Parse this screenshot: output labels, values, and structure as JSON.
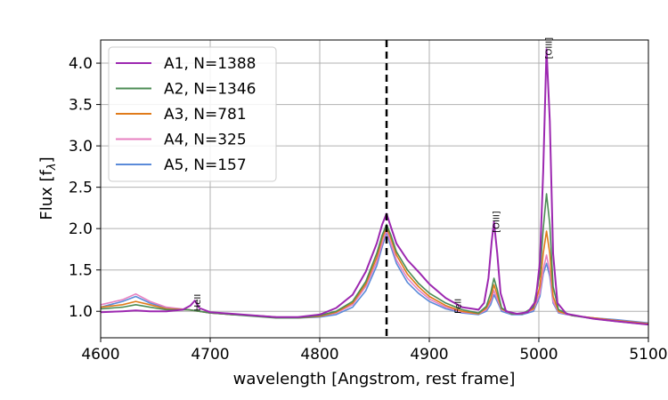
{
  "chart_data": {
    "type": "line",
    "xlabel": "wavelength [Angstrom, rest frame]",
    "ylabel": "Flux [f",
    "ylabel_subscript": "λ",
    "ylabel_close": "]",
    "xlim": [
      4600,
      5100
    ],
    "ylim": [
      0.68,
      4.28
    ],
    "xticks": [
      4600,
      4700,
      4800,
      4900,
      5000,
      5100
    ],
    "yticks": [
      1.0,
      1.5,
      2.0,
      2.5,
      3.0,
      3.5,
      4.0
    ],
    "grid": true,
    "legend_position": "top-left",
    "vline_x": 4861,
    "annotations": [
      {
        "text": "HeII",
        "x": 4686,
        "y": 1.0
      },
      {
        "text": "FeII",
        "x": 4924,
        "y": 0.97
      },
      {
        "text": "[OIII]",
        "x": 4959,
        "y": 1.95
      },
      {
        "text": "[OIII]",
        "x": 5007,
        "y": 4.05
      }
    ],
    "series": [
      {
        "name": "A5, N=157",
        "color": "#5b8bd9",
        "points": [
          [
            4600,
            1.05
          ],
          [
            4620,
            1.12
          ],
          [
            4632,
            1.18
          ],
          [
            4645,
            1.1
          ],
          [
            4660,
            1.04
          ],
          [
            4680,
            1.02
          ],
          [
            4690,
            1.0
          ],
          [
            4700,
            0.98
          ],
          [
            4720,
            0.96
          ],
          [
            4740,
            0.95
          ],
          [
            4760,
            0.93
          ],
          [
            4780,
            0.92
          ],
          [
            4800,
            0.93
          ],
          [
            4815,
            0.96
          ],
          [
            4830,
            1.05
          ],
          [
            4842,
            1.25
          ],
          [
            4852,
            1.55
          ],
          [
            4857,
            1.78
          ],
          [
            4861,
            1.95
          ],
          [
            4865,
            1.78
          ],
          [
            4870,
            1.58
          ],
          [
            4880,
            1.35
          ],
          [
            4890,
            1.22
          ],
          [
            4900,
            1.12
          ],
          [
            4915,
            1.03
          ],
          [
            4930,
            0.98
          ],
          [
            4945,
            0.96
          ],
          [
            4952,
            1.0
          ],
          [
            4956,
            1.08
          ],
          [
            4959,
            1.2
          ],
          [
            4962,
            1.12
          ],
          [
            4966,
            1.0
          ],
          [
            4975,
            0.96
          ],
          [
            4985,
            0.96
          ],
          [
            4995,
            1.0
          ],
          [
            5001,
            1.18
          ],
          [
            5004,
            1.45
          ],
          [
            5007,
            1.58
          ],
          [
            5010,
            1.42
          ],
          [
            5013,
            1.1
          ],
          [
            5018,
            0.98
          ],
          [
            5030,
            0.95
          ],
          [
            5050,
            0.92
          ],
          [
            5070,
            0.9
          ],
          [
            5085,
            0.88
          ],
          [
            5100,
            0.86
          ]
        ]
      },
      {
        "name": "A4, N=325",
        "color": "#e77fc0",
        "points": [
          [
            4600,
            1.08
          ],
          [
            4620,
            1.14
          ],
          [
            4632,
            1.21
          ],
          [
            4645,
            1.12
          ],
          [
            4660,
            1.05
          ],
          [
            4680,
            1.02
          ],
          [
            4690,
            1.0
          ],
          [
            4700,
            0.98
          ],
          [
            4720,
            0.96
          ],
          [
            4740,
            0.95
          ],
          [
            4760,
            0.93
          ],
          [
            4780,
            0.93
          ],
          [
            4800,
            0.94
          ],
          [
            4815,
            0.98
          ],
          [
            4830,
            1.08
          ],
          [
            4842,
            1.3
          ],
          [
            4852,
            1.6
          ],
          [
            4857,
            1.82
          ],
          [
            4861,
            1.98
          ],
          [
            4865,
            1.82
          ],
          [
            4870,
            1.62
          ],
          [
            4880,
            1.4
          ],
          [
            4890,
            1.26
          ],
          [
            4900,
            1.15
          ],
          [
            4915,
            1.05
          ],
          [
            4930,
            0.99
          ],
          [
            4945,
            0.97
          ],
          [
            4952,
            1.02
          ],
          [
            4956,
            1.12
          ],
          [
            4959,
            1.25
          ],
          [
            4962,
            1.15
          ],
          [
            4966,
            1.02
          ],
          [
            4975,
            0.97
          ],
          [
            4985,
            0.97
          ],
          [
            4995,
            1.02
          ],
          [
            5001,
            1.22
          ],
          [
            5004,
            1.5
          ],
          [
            5007,
            1.68
          ],
          [
            5010,
            1.48
          ],
          [
            5013,
            1.12
          ],
          [
            5018,
            0.99
          ],
          [
            5030,
            0.95
          ],
          [
            5050,
            0.92
          ],
          [
            5070,
            0.89
          ],
          [
            5085,
            0.87
          ],
          [
            5100,
            0.85
          ]
        ]
      },
      {
        "name": "A3, N=781",
        "color": "#e07b1a",
        "points": [
          [
            4600,
            1.05
          ],
          [
            4620,
            1.08
          ],
          [
            4632,
            1.12
          ],
          [
            4645,
            1.08
          ],
          [
            4660,
            1.03
          ],
          [
            4680,
            1.02
          ],
          [
            4690,
            1.0
          ],
          [
            4700,
            0.98
          ],
          [
            4720,
            0.96
          ],
          [
            4740,
            0.95
          ],
          [
            4760,
            0.93
          ],
          [
            4780,
            0.92
          ],
          [
            4800,
            0.94
          ],
          [
            4815,
            0.99
          ],
          [
            4830,
            1.1
          ],
          [
            4842,
            1.33
          ],
          [
            4852,
            1.65
          ],
          [
            4857,
            1.88
          ],
          [
            4861,
            2.02
          ],
          [
            4865,
            1.88
          ],
          [
            4870,
            1.68
          ],
          [
            4880,
            1.45
          ],
          [
            4890,
            1.3
          ],
          [
            4900,
            1.18
          ],
          [
            4915,
            1.07
          ],
          [
            4930,
            1.0
          ],
          [
            4945,
            0.97
          ],
          [
            4952,
            1.04
          ],
          [
            4956,
            1.15
          ],
          [
            4959,
            1.32
          ],
          [
            4962,
            1.2
          ],
          [
            4966,
            1.03
          ],
          [
            4975,
            0.97
          ],
          [
            4985,
            0.97
          ],
          [
            4995,
            1.03
          ],
          [
            5001,
            1.3
          ],
          [
            5004,
            1.7
          ],
          [
            5007,
            1.97
          ],
          [
            5010,
            1.7
          ],
          [
            5013,
            1.18
          ],
          [
            5018,
            1.0
          ],
          [
            5030,
            0.95
          ],
          [
            5050,
            0.92
          ],
          [
            5070,
            0.89
          ],
          [
            5085,
            0.87
          ],
          [
            5100,
            0.85
          ]
        ]
      },
      {
        "name": "A2, N=1346",
        "color": "#4c8c55",
        "points": [
          [
            4600,
            1.03
          ],
          [
            4620,
            1.05
          ],
          [
            4632,
            1.08
          ],
          [
            4645,
            1.05
          ],
          [
            4660,
            1.02
          ],
          [
            4680,
            1.02
          ],
          [
            4690,
            1.0
          ],
          [
            4700,
            0.98
          ],
          [
            4720,
            0.96
          ],
          [
            4740,
            0.94
          ],
          [
            4760,
            0.92
          ],
          [
            4780,
            0.92
          ],
          [
            4800,
            0.95
          ],
          [
            4815,
            1.0
          ],
          [
            4830,
            1.12
          ],
          [
            4842,
            1.36
          ],
          [
            4852,
            1.7
          ],
          [
            4857,
            1.92
          ],
          [
            4861,
            2.05
          ],
          [
            4865,
            1.92
          ],
          [
            4870,
            1.72
          ],
          [
            4880,
            1.5
          ],
          [
            4890,
            1.34
          ],
          [
            4900,
            1.22
          ],
          [
            4915,
            1.1
          ],
          [
            4930,
            1.02
          ],
          [
            4945,
            0.98
          ],
          [
            4952,
            1.06
          ],
          [
            4956,
            1.22
          ],
          [
            4959,
            1.4
          ],
          [
            4962,
            1.26
          ],
          [
            4966,
            1.04
          ],
          [
            4975,
            0.97
          ],
          [
            4985,
            0.97
          ],
          [
            4995,
            1.05
          ],
          [
            5001,
            1.45
          ],
          [
            5004,
            2.0
          ],
          [
            5007,
            2.42
          ],
          [
            5010,
            2.05
          ],
          [
            5013,
            1.3
          ],
          [
            5018,
            1.02
          ],
          [
            5030,
            0.95
          ],
          [
            5050,
            0.91
          ],
          [
            5070,
            0.88
          ],
          [
            5085,
            0.86
          ],
          [
            5100,
            0.84
          ]
        ]
      },
      {
        "name": "A1, N=1388",
        "color": "#9c27b0",
        "points": [
          [
            4600,
            0.99
          ],
          [
            4620,
            1.0
          ],
          [
            4632,
            1.01
          ],
          [
            4645,
            1.0
          ],
          [
            4660,
            1.0
          ],
          [
            4675,
            1.02
          ],
          [
            4682,
            1.07
          ],
          [
            4686,
            1.13
          ],
          [
            4690,
            1.04
          ],
          [
            4700,
            0.99
          ],
          [
            4720,
            0.97
          ],
          [
            4740,
            0.95
          ],
          [
            4760,
            0.93
          ],
          [
            4780,
            0.93
          ],
          [
            4800,
            0.96
          ],
          [
            4815,
            1.04
          ],
          [
            4830,
            1.2
          ],
          [
            4842,
            1.48
          ],
          [
            4852,
            1.82
          ],
          [
            4857,
            2.05
          ],
          [
            4861,
            2.18
          ],
          [
            4865,
            2.02
          ],
          [
            4870,
            1.82
          ],
          [
            4880,
            1.62
          ],
          [
            4890,
            1.48
          ],
          [
            4900,
            1.33
          ],
          [
            4915,
            1.16
          ],
          [
            4930,
            1.05
          ],
          [
            4945,
            1.02
          ],
          [
            4950,
            1.1
          ],
          [
            4954,
            1.4
          ],
          [
            4957,
            1.85
          ],
          [
            4959,
            2.08
          ],
          [
            4962,
            1.7
          ],
          [
            4965,
            1.22
          ],
          [
            4970,
            1.0
          ],
          [
            4980,
            0.97
          ],
          [
            4990,
            0.99
          ],
          [
            4997,
            1.12
          ],
          [
            5001,
            1.6
          ],
          [
            5004,
            2.7
          ],
          [
            5007,
            4.17
          ],
          [
            5010,
            3.3
          ],
          [
            5013,
            1.7
          ],
          [
            5017,
            1.1
          ],
          [
            5025,
            0.97
          ],
          [
            5050,
            0.91
          ],
          [
            5070,
            0.88
          ],
          [
            5085,
            0.86
          ],
          [
            5100,
            0.84
          ]
        ]
      }
    ]
  }
}
